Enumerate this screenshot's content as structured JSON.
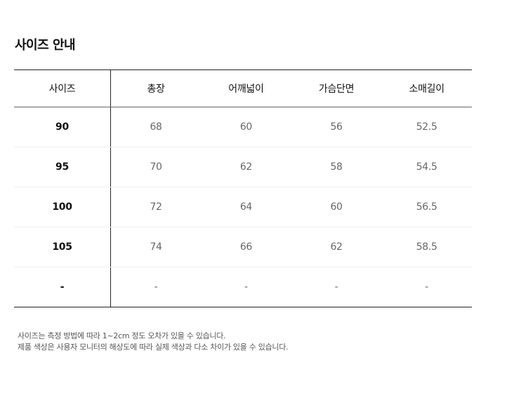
{
  "title": "사이즈 안내",
  "table": {
    "headers": [
      "사이즈",
      "총장",
      "어깨넓이",
      "가슴단면",
      "소매길이"
    ],
    "rows": [
      [
        "90",
        "68",
        "60",
        "56",
        "52.5"
      ],
      [
        "95",
        "70",
        "62",
        "58",
        "54.5"
      ],
      [
        "100",
        "72",
        "64",
        "60",
        "56.5"
      ],
      [
        "105",
        "74",
        "66",
        "62",
        "58.5"
      ],
      [
        "-",
        "-",
        "-",
        "-",
        "-"
      ]
    ]
  },
  "notes": [
    "사이즈는 측정 방법에 따라 1~2cm 정도 오차가 있을 수 있습니다.",
    "제품 색상은 사용자 모니터의 해상도에 따라 실제 색상과 다소 차이가 있을 수 있습니다."
  ]
}
